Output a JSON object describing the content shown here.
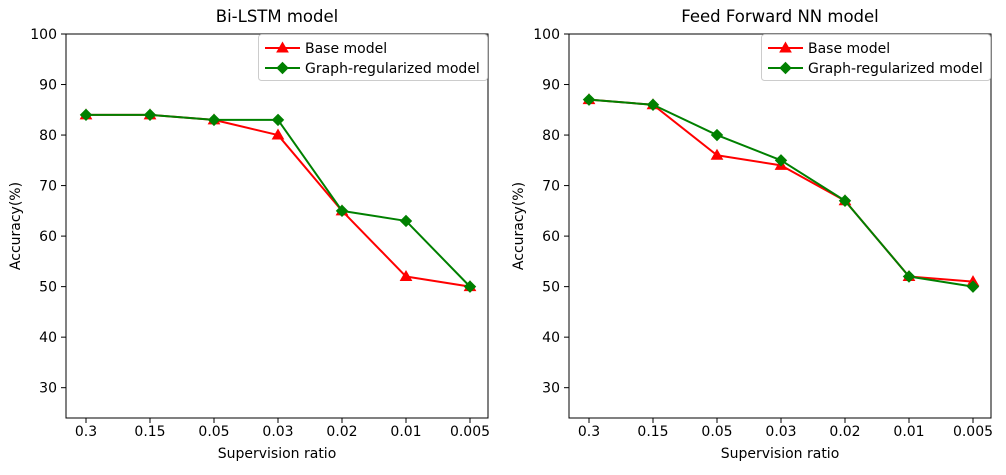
{
  "figure": {
    "background": "#ffffff",
    "axis_color": "#000000",
    "text_color": "#000000",
    "legend_border_color": "#cccccc",
    "legend_background": "#ffffff"
  },
  "chart_data": [
    {
      "type": "line",
      "title": "Bi-LSTM model",
      "xlabel": "Supervision ratio",
      "ylabel": "Accuracy(%)",
      "categories": [
        "0.3",
        "0.15",
        "0.05",
        "0.03",
        "0.02",
        "0.01",
        "0.005"
      ],
      "yticks": [
        100,
        90,
        80,
        70,
        60,
        50,
        40,
        30
      ],
      "ylim": [
        24,
        100
      ],
      "grid": false,
      "legend_position": "upper right",
      "series": [
        {
          "name": "Base model",
          "color": "#ff0000",
          "marker": "triangle",
          "values": [
            84,
            84,
            83,
            80,
            65,
            52,
            50
          ]
        },
        {
          "name": "Graph-regularized model",
          "color": "#008000",
          "marker": "diamond",
          "values": [
            84,
            84,
            83,
            83,
            65,
            63,
            50
          ]
        }
      ]
    },
    {
      "type": "line",
      "title": "Feed Forward NN model",
      "xlabel": "Supervision ratio",
      "ylabel": "Accuracy(%)",
      "categories": [
        "0.3",
        "0.15",
        "0.05",
        "0.03",
        "0.02",
        "0.01",
        "0.005"
      ],
      "yticks": [
        100,
        90,
        80,
        70,
        60,
        50,
        40,
        30
      ],
      "ylim": [
        24,
        100
      ],
      "grid": false,
      "legend_position": "upper right",
      "series": [
        {
          "name": "Base model",
          "color": "#ff0000",
          "marker": "triangle",
          "values": [
            87,
            86,
            76,
            74,
            67,
            52,
            51
          ]
        },
        {
          "name": "Graph-regularized model",
          "color": "#008000",
          "marker": "diamond",
          "values": [
            87,
            86,
            80,
            75,
            67,
            52,
            50
          ]
        }
      ]
    }
  ]
}
